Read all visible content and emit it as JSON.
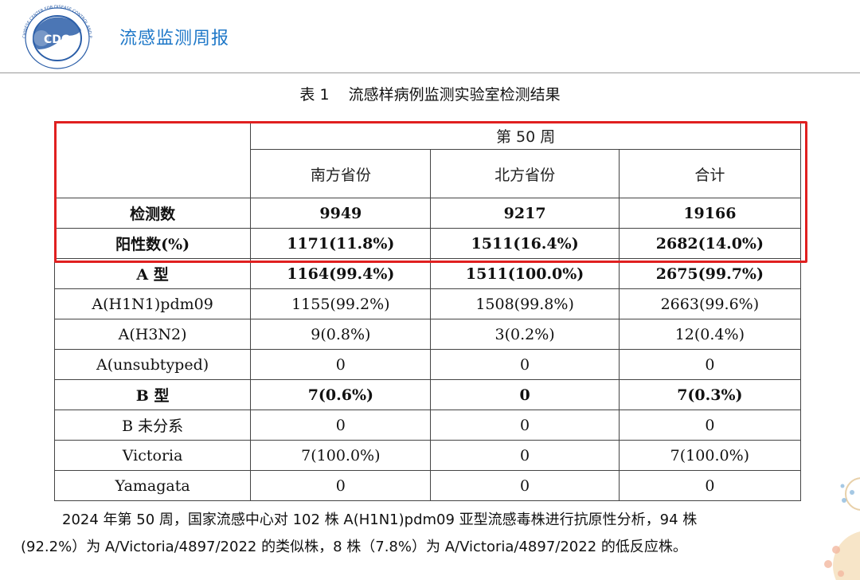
{
  "header": {
    "report_title": "流感监测周报",
    "logo_text": "CDC",
    "logo_ring_text": "CHINESE CENTER FOR DISEASE CONTROL AND PREVENTION",
    "logo_icon": "china-cdc-logo-icon"
  },
  "table": {
    "caption_number": "表 1",
    "caption_title": "流感样病例监测实验室检测结果",
    "week_header": "第 50 周",
    "columns": [
      "南方省份",
      "北方省份",
      "合计"
    ],
    "rows": [
      {
        "label": "检测数",
        "values": [
          "9949",
          "9217",
          "19166"
        ],
        "bold": true
      },
      {
        "label": "阳性数(%)",
        "values": [
          "1171(11.8%)",
          "1511(16.4%)",
          "2682(14.0%)"
        ],
        "bold": true
      },
      {
        "label": "A 型",
        "values": [
          "1164(99.4%)",
          "1511(100.0%)",
          "2675(99.7%)"
        ],
        "bold": true
      },
      {
        "label": "A(H1N1)pdm09",
        "values": [
          "1155(99.2%)",
          "1508(99.8%)",
          "2663(99.6%)"
        ],
        "bold": false
      },
      {
        "label": "A(H3N2)",
        "values": [
          "9(0.8%)",
          "3(0.2%)",
          "12(0.4%)"
        ],
        "bold": false
      },
      {
        "label": "A(unsubtyped)",
        "values": [
          "0",
          "0",
          "0"
        ],
        "bold": false
      },
      {
        "label": "B 型",
        "values": [
          "7(0.6%)",
          "0",
          "7(0.3%)"
        ],
        "bold": true
      },
      {
        "label": "B 未分系",
        "values": [
          "0",
          "0",
          "0"
        ],
        "bold": false
      },
      {
        "label": "Victoria",
        "values": [
          "7(100.0%)",
          "0",
          "7(100.0%)"
        ],
        "bold": false
      },
      {
        "label": "Yamagata",
        "values": [
          "0",
          "0",
          "0"
        ],
        "bold": false
      }
    ]
  },
  "highlight_color": "#e02020",
  "paragraph": {
    "line1": "2024 年第 50 周，国家流感中心对 102 株 A(H1N1)pdm09 亚型流感毒株进行抗原性分析，94 株",
    "line2": "(92.2%）为 A/Victoria/4897/2022 的类似株，8 株（7.8%）为 A/Victoria/4897/2022 的低反应株。"
  }
}
